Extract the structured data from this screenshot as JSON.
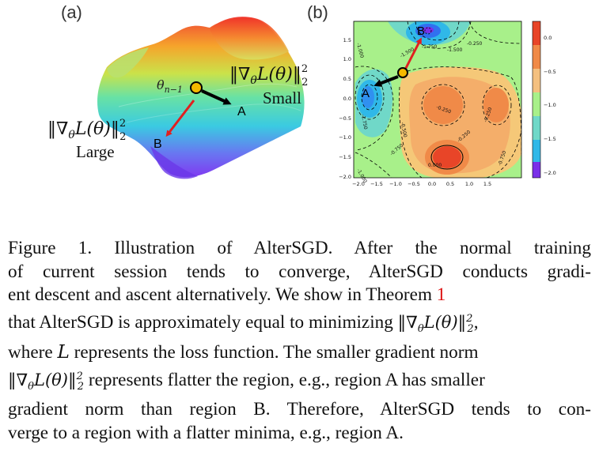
{
  "panel_a": {
    "label": "(a)",
    "theta_label": "θ",
    "theta_sub": "n−1",
    "point_a": "A",
    "point_b": "B",
    "large_label": "Large",
    "small_label": "Small",
    "norm_text": "‖∇",
    "norm_theta": "θ",
    "norm_rest": "L(θ)‖",
    "norm_sup": "2",
    "norm_sub": "2",
    "colors": {
      "arrow_red": "#e02020",
      "arrow_black": "#000000",
      "point": "#f5b800"
    }
  },
  "panel_b": {
    "label": "(b)",
    "point_a": "A",
    "point_b": "B",
    "x_ticks": [
      "−2.0",
      "−1.5",
      "−1.0",
      "−0.5",
      "0.0",
      "0.5",
      "1.0",
      "1.5"
    ],
    "y_ticks": [
      "1.5",
      "1.0",
      "0.5",
      "0.0",
      "−0.5",
      "−1.0",
      "−1.5",
      "−2.0"
    ],
    "colorbar_ticks": [
      "0.0",
      "−0.5",
      "−1.0",
      "−1.5",
      "−2.0"
    ],
    "contour_labels": [
      "-1.750",
      "-1.500",
      "-1.500",
      "-0.250",
      "-0.250",
      "-0.500",
      "-0.250",
      "-0.750",
      "-0.250",
      "-0.750",
      "-1.000",
      "0.000",
      "-1.750",
      "-1.000"
    ]
  },
  "caption": {
    "line1": "Figure 1. Illustration of AlterSGD. After the normal training",
    "line2": "of current session tends to converge, AlterSGD conducts gradi-",
    "line3": "ent descent and ascent alternatively.  We show in Theorem",
    "theorem_ref": "1",
    "line4a": "that AlterSGD is approximately equal to minimizing",
    "line4b": ",",
    "line5a": "where",
    "line5_var": "L",
    "line5b": "represents the loss function. The smaller gradient norm",
    "line6b": "represents flatter the region, e.g., region A has smaller",
    "line7": "gradient norm than region B. Therefore, AlterSGD tends to con-",
    "line8": "verge to a region with a flatter minima, e.g., region A."
  }
}
